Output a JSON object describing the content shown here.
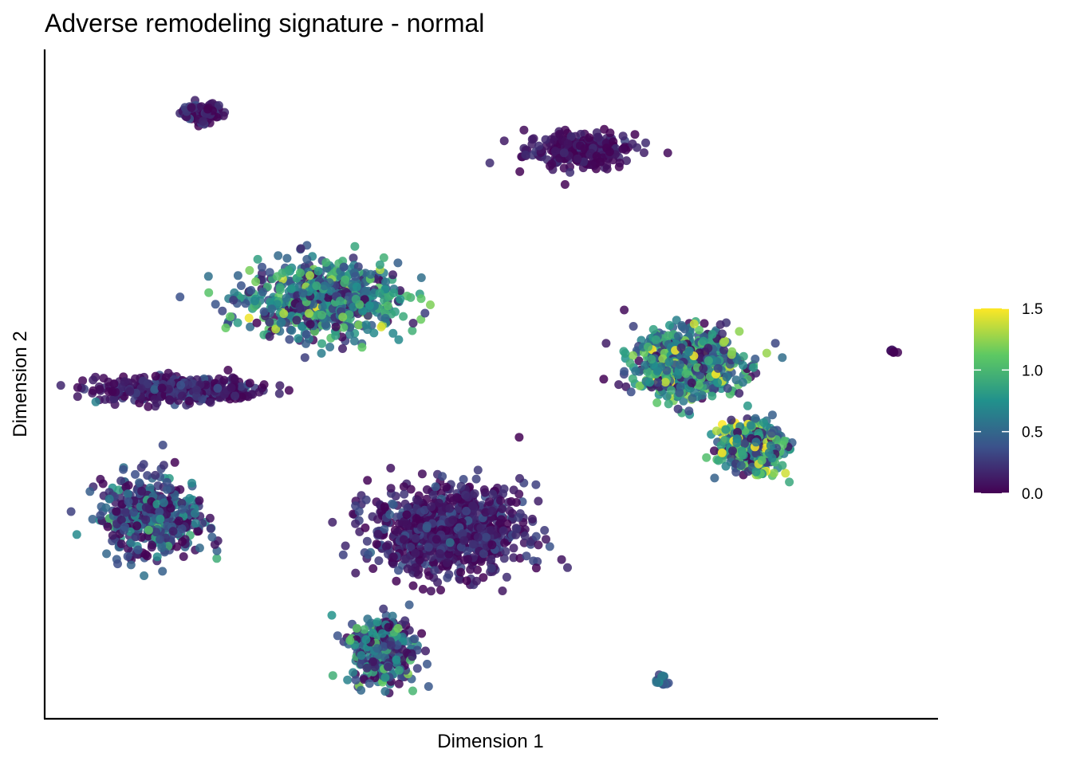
{
  "chart_data": {
    "type": "scatter",
    "title": "Adverse remodeling signature - normal",
    "xlabel": "Dimension 1",
    "ylabel": "Dimension 2",
    "x_ticks_shown": false,
    "y_ticks_shown": false,
    "grid": false,
    "xlim": [
      0,
      100
    ],
    "ylim": [
      0,
      100
    ],
    "color_scale": {
      "name": "viridis",
      "min": 0.0,
      "max": 1.5,
      "ticks": [
        "0.0",
        "0.5",
        "1.0",
        "1.5"
      ],
      "tick_values": [
        0.0,
        0.5,
        1.0,
        1.5
      ],
      "colors": [
        "#440154",
        "#3b528b",
        "#21918c",
        "#5ec962",
        "#fde725"
      ]
    },
    "legend_position": "right",
    "clusters": [
      {
        "label": "cluster-top-left-small",
        "center": [
          17.5,
          90.5
        ],
        "spread": [
          2.5,
          1.5
        ],
        "n": 90,
        "mean": 0.12,
        "sd": 0.12
      },
      {
        "label": "cluster-top-middle",
        "center": [
          60.0,
          85.0
        ],
        "spread": [
          6.0,
          2.6
        ],
        "n": 260,
        "mean": 0.08,
        "sd": 0.08
      },
      {
        "label": "cluster-upper-middle",
        "center": [
          31.0,
          62.5
        ],
        "spread": [
          8.5,
          5.5
        ],
        "n": 700,
        "mean": 0.55,
        "sd": 0.35
      },
      {
        "label": "cluster-left-band",
        "center": [
          15.0,
          49.0
        ],
        "spread": [
          9.0,
          1.8
        ],
        "n": 420,
        "mean": 0.12,
        "sd": 0.15
      },
      {
        "label": "cluster-left-lower",
        "center": [
          12.0,
          30.0
        ],
        "spread": [
          6.0,
          6.0
        ],
        "n": 420,
        "mean": 0.3,
        "sd": 0.3
      },
      {
        "label": "cluster-center-lower",
        "center": [
          45.0,
          28.0
        ],
        "spread": [
          8.5,
          6.5
        ],
        "n": 900,
        "mean": 0.12,
        "sd": 0.15
      },
      {
        "label": "cluster-bottom-center",
        "center": [
          38.0,
          10.0
        ],
        "spread": [
          3.5,
          5.0
        ],
        "n": 350,
        "mean": 0.45,
        "sd": 0.35
      },
      {
        "label": "cluster-right-main",
        "center": [
          72.0,
          53.0
        ],
        "spread": [
          6.0,
          5.0
        ],
        "n": 700,
        "mean": 0.65,
        "sd": 0.35
      },
      {
        "label": "cluster-right-lower",
        "center": [
          79.0,
          40.5
        ],
        "spread": [
          3.5,
          3.5
        ],
        "n": 450,
        "mean": 0.75,
        "sd": 0.4
      },
      {
        "label": "cluster-far-right-tiny",
        "center": [
          95.2,
          54.8
        ],
        "spread": [
          0.4,
          0.4
        ],
        "n": 10,
        "mean": 0.05,
        "sd": 0.05
      },
      {
        "label": "cluster-bottom-right-tiny",
        "center": [
          69.2,
          5.3
        ],
        "spread": [
          0.8,
          0.9
        ],
        "n": 16,
        "mean": 0.55,
        "sd": 0.15
      }
    ]
  }
}
